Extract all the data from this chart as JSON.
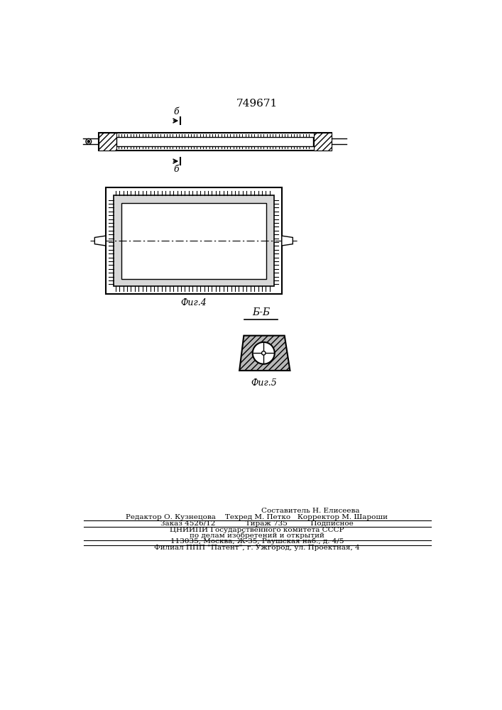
{
  "title": "749671",
  "bg_color": "#ffffff",
  "fig_label4": "Фиг.4",
  "fig_label5": "Фиг.5",
  "section_label": "Б-Б",
  "line_color": "#000000",
  "footer_lines": [
    "Составитель Н. Елисеева",
    "Редактор О. Кузнецова    Техред М. Петко   Корректор М. Шароши",
    "Заказ 4526/12             Тираж 735          Подписное",
    "ЦНИИПИ Государственного комитета СССР",
    "по делам изобретений и открытий",
    "113035, Москва, Ж-35, Раушская наб., д. 4/5",
    "Филиал ППП \"Патент\", г. Ужгород, ул. Проектная, 4"
  ]
}
